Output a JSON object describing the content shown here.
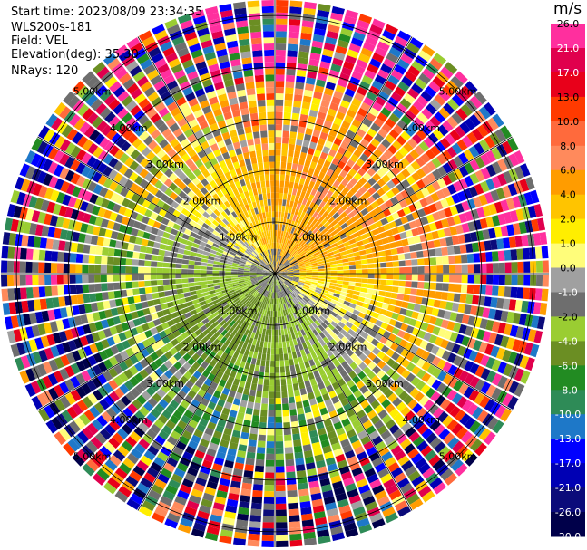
{
  "header": {
    "start_time": "Start time: 2023/08/09 23:34:35",
    "instrument": "WLS200s-181",
    "field": "Field: VEL",
    "elevation": "Elevation(deg): 35.30",
    "nrays": "NRays: 120"
  },
  "chart_data": {
    "type": "ppi-heatmap",
    "field": "VEL",
    "units": "m/s",
    "n_rays": 120,
    "elevation_deg": 35.3,
    "range_max_km": 5.3,
    "range_rings_km": [
      1.0,
      2.0,
      3.0,
      4.0,
      5.0
    ],
    "ring_labels": [
      "1.00km",
      "2.00km",
      "3.00km",
      "4.00km",
      "5.00km"
    ],
    "colorbar": {
      "unit_label": "m/s",
      "ticks": [
        "26.0",
        "21.0",
        "17.0",
        "13.0",
        "10.0",
        "8.0",
        "6.0",
        "4.0",
        "2.0",
        "1.0",
        "0.0",
        "-1.0",
        "-2.0",
        "-4.0",
        "-6.0",
        "-8.0",
        "-10.0",
        "-13.0",
        "-17.0",
        "-21.0",
        "-26.0",
        "-30.0"
      ],
      "colors": [
        "#ff2f9e",
        "#e0004d",
        "#e8001a",
        "#ff3a00",
        "#ff6a3c",
        "#ff8a5c",
        "#ff9c00",
        "#ffc400",
        "#ffee00",
        "#fffd7a",
        "#a0a0a0",
        "#6e6e6e",
        "#9acd32",
        "#6b8e23",
        "#228b22",
        "#2e8b57",
        "#1e78c8",
        "#0000ff",
        "#0000b4",
        "#0b0b7a",
        "#00004a"
      ]
    },
    "description": "Velocity field, mostly positive (yellow/orange) in upper half, negative (green/blue) in lower half, noisy at long range"
  }
}
